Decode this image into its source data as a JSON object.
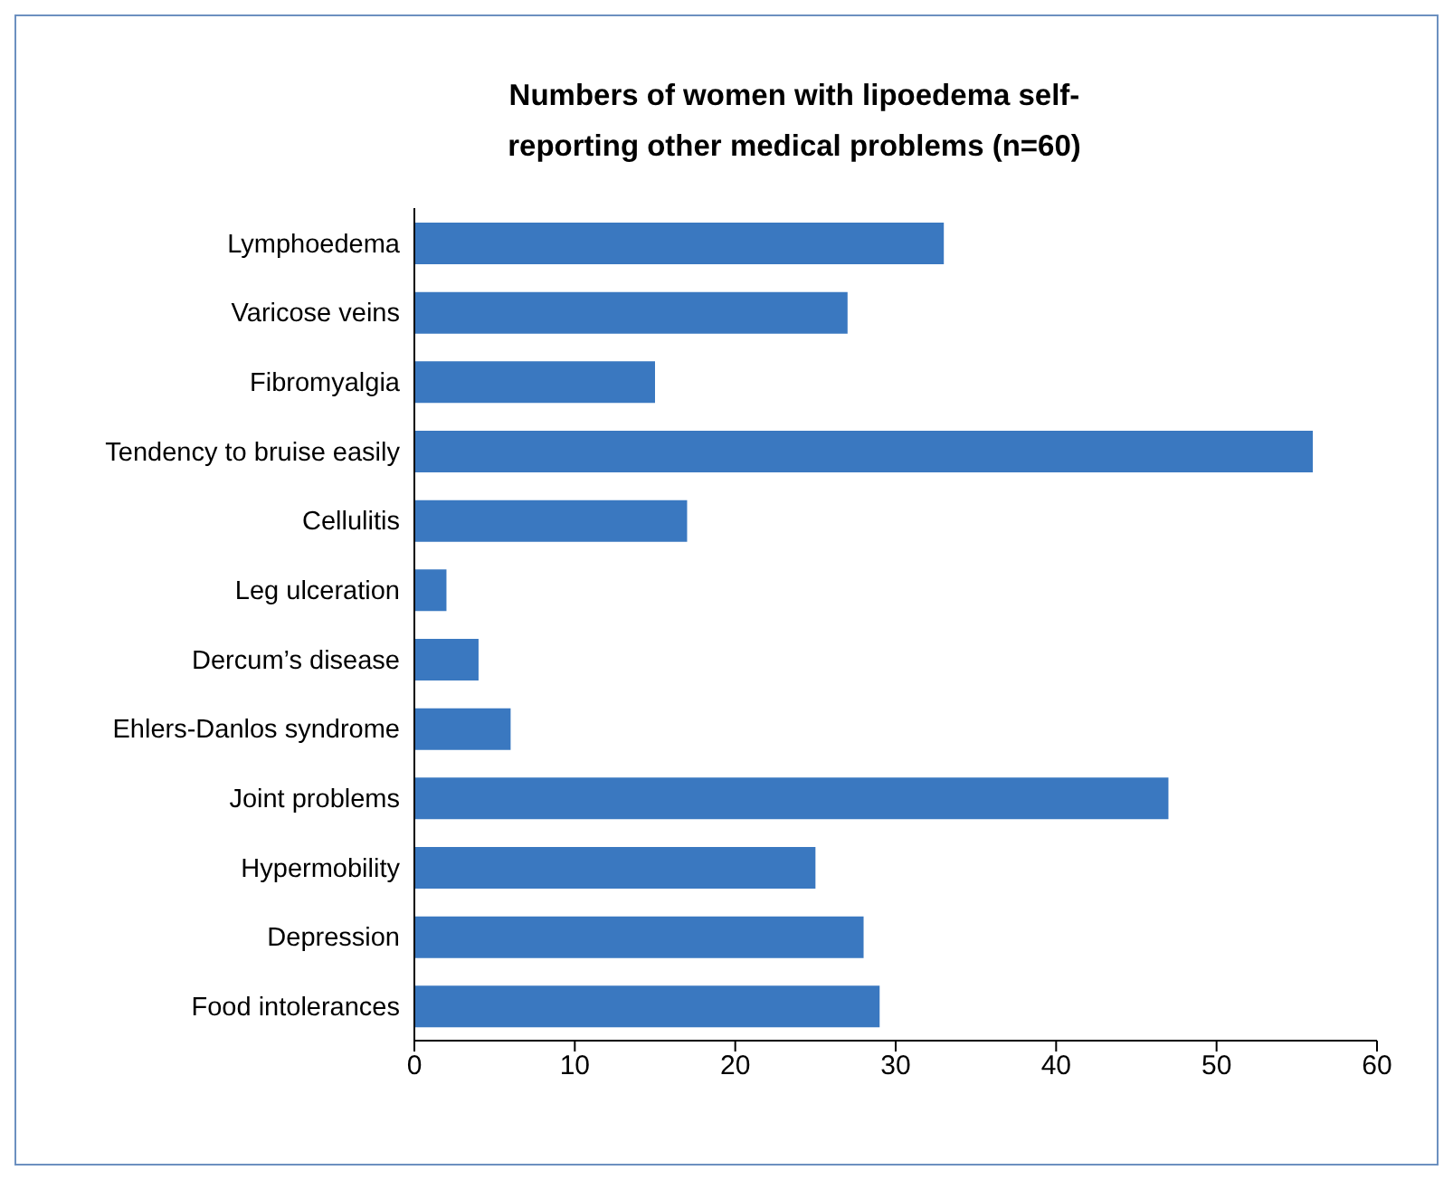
{
  "chart_data": {
    "type": "bar",
    "orientation": "horizontal",
    "title": "Numbers of women with lipoedema self-reporting other medical problems (n=60)",
    "categories": [
      "Lymphoedema",
      "Varicose veins",
      "Fibromyalgia",
      "Tendency to bruise easily",
      "Cellulitis",
      "Leg ulceration",
      "Dercum’s disease",
      "Ehlers-Danlos syndrome",
      "Joint problems",
      "Hypermobility",
      "Depression",
      "Food intolerances"
    ],
    "values": [
      33,
      27,
      15,
      56,
      17,
      2,
      4,
      6,
      47,
      25,
      28,
      29
    ],
    "color": "#3a78c0",
    "xlim": [
      0,
      60
    ],
    "xticks": [
      0,
      10,
      20,
      30,
      40,
      50,
      60
    ]
  }
}
